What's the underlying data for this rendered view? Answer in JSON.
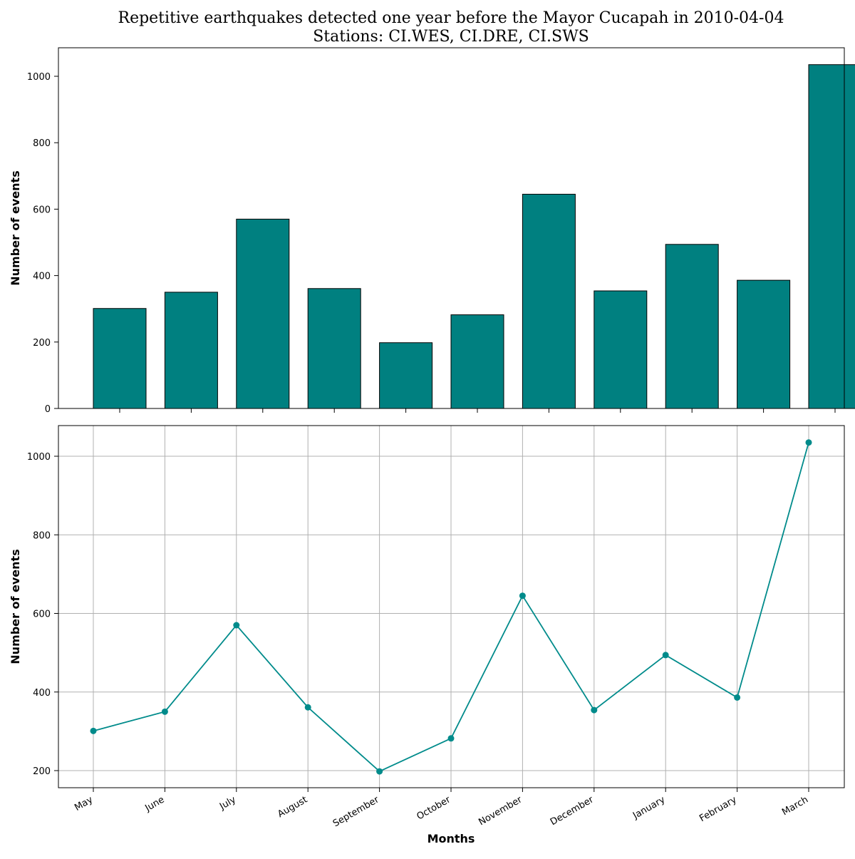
{
  "chart_data": [
    {
      "type": "bar",
      "title": "Repetitive earthquakes detected one year before the Mayor Cucapah in 2010-04-04",
      "subtitle": "Stations: CI.WES, CI.DRE, CI.SWS",
      "categories": [
        "May",
        "June",
        "July",
        "August",
        "September",
        "October",
        "November",
        "December",
        "January",
        "February",
        "March"
      ],
      "values": [
        301,
        350,
        570,
        361,
        198,
        282,
        645,
        354,
        494,
        386,
        1035
      ],
      "ylabel": "Number of events",
      "xlabel": "",
      "ylim": [
        0,
        1088
      ],
      "yticks": [
        0,
        200,
        400,
        600,
        800,
        1000
      ],
      "grid": false,
      "color": "#008080",
      "edge_color": "#000000"
    },
    {
      "type": "line",
      "categories": [
        "May",
        "June",
        "July",
        "August",
        "September",
        "October",
        "November",
        "December",
        "January",
        "February",
        "March"
      ],
      "values": [
        301,
        350,
        570,
        361,
        198,
        282,
        645,
        354,
        494,
        386,
        1035
      ],
      "ylabel": "Number of events",
      "xlabel": "Months",
      "ylim": [
        156,
        1077
      ],
      "yticks": [
        200,
        400,
        600,
        800,
        1000
      ],
      "grid": true,
      "color": "#008b8b",
      "marker": "circle"
    }
  ]
}
